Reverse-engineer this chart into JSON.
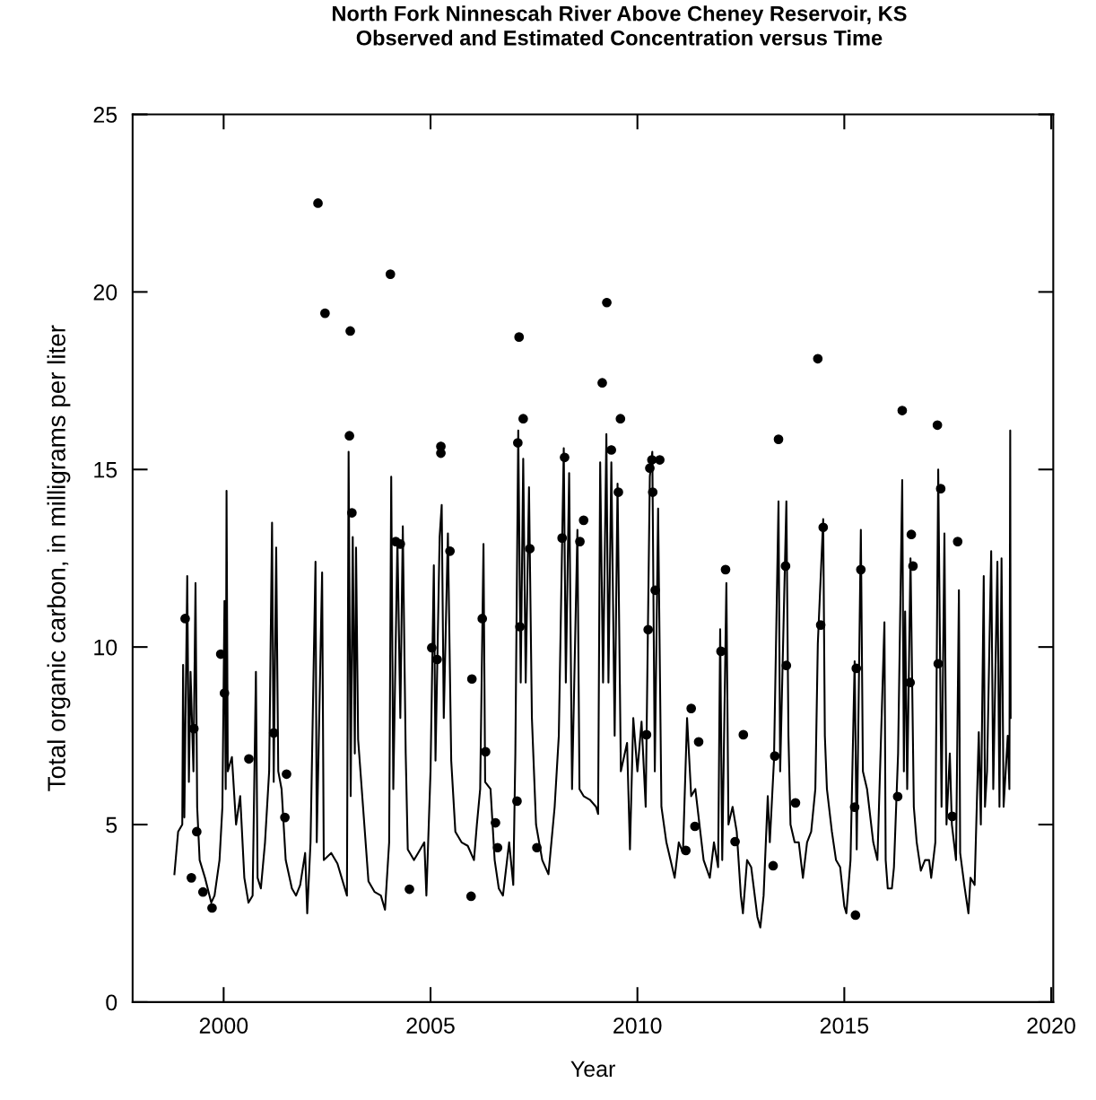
{
  "chart_data": {
    "type": "line",
    "title": "North Fork Ninnescah River Above Cheney Reservoir, KS\nObserved and Estimated Concentration versus Time",
    "xlabel": "Year",
    "ylabel": "Total organic carbon, in milligrams per liter",
    "xlim": [
      1997.8,
      2020.05
    ],
    "xticks": [
      2000,
      2005,
      2010,
      2015,
      2020
    ],
    "ylim": [
      0,
      25
    ],
    "yticks": [
      0,
      5,
      10,
      15,
      20,
      25
    ],
    "grid": false,
    "legend": false,
    "series": [
      {
        "color": "#000000",
        "marker": "none",
        "line_style": "solid",
        "x": [
          1998.81,
          1998.9,
          1999.0,
          1999.02,
          1999.05,
          1999.12,
          1999.16,
          1999.2,
          1999.27,
          1999.32,
          1999.36,
          1999.42,
          1999.55,
          1999.7,
          1999.78,
          1999.9,
          1999.97,
          2000.02,
          2000.05,
          2000.07,
          2000.1,
          2000.2,
          2000.3,
          2000.4,
          2000.5,
          2000.6,
          2000.7,
          2000.78,
          2000.82,
          2000.9,
          2001.0,
          2001.1,
          2001.17,
          2001.21,
          2001.27,
          2001.32,
          2001.4,
          2001.5,
          2001.65,
          2001.75,
          2001.85,
          2001.97,
          2002.02,
          2002.1,
          2002.22,
          2002.25,
          2002.38,
          2002.42,
          2002.6,
          2002.75,
          2002.98,
          2003.02,
          2003.07,
          2003.12,
          2003.17,
          2003.2,
          2003.25,
          2003.4,
          2003.5,
          2003.65,
          2003.8,
          2003.9,
          2004.0,
          2004.05,
          2004.1,
          2004.2,
          2004.27,
          2004.33,
          2004.4,
          2004.45,
          2004.6,
          2004.7,
          2004.85,
          2004.9,
          2005.0,
          2005.08,
          2005.12,
          2005.22,
          2005.27,
          2005.32,
          2005.42,
          2005.5,
          2005.6,
          2005.75,
          2005.9,
          2006.05,
          2006.12,
          2006.2,
          2006.28,
          2006.32,
          2006.45,
          2006.55,
          2006.65,
          2006.75,
          2006.9,
          2007.0,
          2007.05,
          2007.12,
          2007.18,
          2007.24,
          2007.3,
          2007.38,
          2007.45,
          2007.55,
          2007.7,
          2007.85,
          2008.0,
          2008.1,
          2008.22,
          2008.27,
          2008.35,
          2008.42,
          2008.55,
          2008.6,
          2008.7,
          2008.85,
          2009.0,
          2009.05,
          2009.1,
          2009.17,
          2009.25,
          2009.3,
          2009.37,
          2009.45,
          2009.52,
          2009.6,
          2009.75,
          2009.82,
          2009.9,
          2010.0,
          2010.1,
          2010.2,
          2010.3,
          2010.36,
          2010.42,
          2010.5,
          2010.58,
          2010.7,
          2010.8,
          2010.9,
          2011.0,
          2011.1,
          2011.2,
          2011.3,
          2011.4,
          2011.5,
          2011.6,
          2011.75,
          2011.85,
          2011.95,
          2012.0,
          2012.05,
          2012.15,
          2012.2,
          2012.3,
          2012.4,
          2012.5,
          2012.55,
          2012.65,
          2012.75,
          2012.9,
          2012.97,
          2013.05,
          2013.15,
          2013.2,
          2013.3,
          2013.41,
          2013.45,
          2013.6,
          2013.65,
          2013.7,
          2013.8,
          2013.9,
          2014.0,
          2014.1,
          2014.2,
          2014.3,
          2014.36,
          2014.49,
          2014.53,
          2014.58,
          2014.7,
          2014.8,
          2014.9,
          2015.0,
          2015.05,
          2015.15,
          2015.25,
          2015.3,
          2015.4,
          2015.45,
          2015.55,
          2015.7,
          2015.8,
          2015.97,
          2016.0,
          2016.05,
          2016.15,
          2016.2,
          2016.3,
          2016.4,
          2016.44,
          2016.47,
          2016.52,
          2016.6,
          2016.68,
          2016.75,
          2016.85,
          2016.95,
          2017.05,
          2017.1,
          2017.2,
          2017.27,
          2017.35,
          2017.42,
          2017.47,
          2017.55,
          2017.6,
          2017.7,
          2017.77,
          2017.8,
          2017.9,
          2018.0,
          2018.05,
          2018.15,
          2018.25,
          2018.3,
          2018.37,
          2018.4,
          2018.45,
          2018.55,
          2018.6,
          2018.7,
          2018.75,
          2018.8,
          2018.85,
          2018.95,
          2018.99,
          2019.01,
          2019.02
        ],
        "values": [
          3.6,
          4.8,
          5.0,
          9.5,
          5.2,
          12.0,
          6.2,
          9.3,
          6.5,
          11.8,
          5.5,
          4.0,
          3.5,
          2.8,
          3.0,
          4.0,
          5.5,
          11.3,
          6.0,
          14.4,
          6.5,
          6.9,
          5.0,
          5.8,
          3.5,
          2.8,
          3.0,
          9.3,
          3.5,
          3.2,
          4.5,
          6.5,
          13.5,
          6.2,
          12.8,
          6.5,
          6.0,
          4.0,
          3.2,
          3.0,
          3.3,
          4.2,
          2.5,
          4.5,
          12.4,
          4.5,
          12.1,
          4.0,
          4.2,
          3.9,
          3.0,
          15.5,
          5.8,
          13.1,
          7.0,
          12.8,
          7.4,
          5.0,
          3.4,
          3.1,
          3.0,
          2.6,
          4.5,
          14.8,
          6.0,
          13.0,
          8.0,
          13.4,
          7.0,
          4.3,
          4.0,
          4.2,
          4.5,
          3.0,
          6.5,
          12.3,
          6.8,
          13.1,
          14.0,
          8.0,
          13.2,
          6.8,
          4.8,
          4.5,
          4.4,
          4.0,
          5.0,
          6.0,
          12.9,
          6.2,
          6.0,
          4.0,
          3.2,
          3.0,
          4.5,
          3.3,
          7.0,
          16.1,
          9.0,
          15.3,
          9.0,
          14.5,
          8.0,
          5.0,
          4.0,
          3.6,
          5.5,
          7.5,
          15.6,
          9.0,
          14.9,
          6.0,
          13.3,
          6.0,
          5.8,
          5.7,
          5.5,
          5.3,
          15.2,
          9.0,
          16.0,
          9.0,
          15.2,
          7.5,
          14.6,
          6.5,
          7.3,
          4.3,
          8.0,
          6.5,
          7.9,
          5.5,
          14.8,
          15.5,
          6.5,
          13.9,
          5.5,
          4.5,
          4.0,
          3.5,
          4.5,
          4.2,
          8.0,
          5.8,
          6.0,
          5.0,
          4.0,
          3.5,
          4.5,
          3.8,
          10.5,
          4.0,
          11.8,
          5.0,
          5.5,
          4.8,
          3.0,
          2.5,
          4.0,
          3.8,
          2.4,
          2.1,
          3.0,
          5.8,
          4.5,
          6.8,
          14.1,
          6.5,
          14.1,
          7.5,
          5.0,
          4.5,
          4.5,
          3.5,
          4.5,
          4.8,
          6.0,
          10.1,
          13.6,
          7.5,
          6.0,
          4.8,
          4.0,
          3.8,
          2.7,
          2.5,
          4.0,
          9.6,
          4.3,
          13.3,
          6.5,
          6.0,
          4.5,
          4.0,
          10.7,
          4.0,
          3.2,
          3.2,
          3.8,
          7.0,
          14.7,
          6.5,
          11.0,
          6.0,
          12.5,
          5.5,
          4.5,
          3.7,
          4.0,
          4.0,
          3.5,
          4.5,
          15.0,
          5.5,
          13.2,
          5.0,
          7.0,
          5.0,
          4.0,
          11.6,
          4.2,
          3.3,
          2.5,
          3.5,
          3.3,
          7.6,
          5.0,
          12.0,
          5.5,
          6.5,
          12.7,
          6.0,
          12.4,
          5.5,
          12.5,
          5.5,
          7.5,
          6.0,
          16.1,
          8.0
        ]
      },
      {
        "type": "scatter",
        "color": "#000000",
        "marker": "circle",
        "x": [
          1999.07,
          1999.22,
          1999.28,
          1999.35,
          1999.5,
          1999.72,
          1999.93,
          2000.02,
          2000.61,
          2001.21,
          2001.48,
          2001.52,
          2002.28,
          2002.45,
          2003.04,
          2003.06,
          2003.1,
          2004.03,
          2004.16,
          2004.27,
          2004.49,
          2005.03,
          2005.16,
          2005.25,
          2005.25,
          2005.47,
          2005.98,
          2006.0,
          2006.25,
          2006.33,
          2006.57,
          2006.62,
          2007.09,
          2007.11,
          2007.14,
          2007.16,
          2007.24,
          2007.4,
          2007.57,
          2008.18,
          2008.24,
          2008.61,
          2008.7,
          2009.15,
          2009.26,
          2009.37,
          2009.54,
          2009.59,
          2010.22,
          2010.26,
          2010.3,
          2010.35,
          2010.37,
          2010.43,
          2010.54,
          2011.17,
          2011.3,
          2011.39,
          2011.48,
          2012.02,
          2012.13,
          2012.36,
          2012.56,
          2013.28,
          2013.32,
          2013.41,
          2013.58,
          2013.6,
          2013.82,
          2014.36,
          2014.43,
          2014.49,
          2015.25,
          2015.27,
          2015.29,
          2015.4,
          2016.29,
          2016.4,
          2016.59,
          2016.62,
          2016.66,
          2017.25,
          2017.27,
          2017.33,
          2017.61,
          2017.74
        ],
        "values": [
          10.8,
          3.5,
          7.7,
          4.8,
          3.1,
          2.65,
          9.8,
          8.7,
          6.85,
          7.58,
          5.2,
          6.42,
          22.5,
          19.4,
          15.95,
          18.9,
          13.78,
          20.5,
          12.97,
          12.9,
          3.18,
          9.98,
          9.65,
          15.65,
          15.46,
          12.7,
          2.98,
          9.1,
          10.8,
          7.05,
          5.05,
          4.35,
          5.66,
          15.75,
          18.73,
          10.57,
          16.43,
          12.77,
          4.35,
          13.07,
          15.34,
          12.97,
          13.57,
          17.44,
          19.7,
          15.55,
          14.36,
          16.43,
          7.53,
          10.49,
          15.04,
          15.27,
          14.36,
          11.6,
          15.27,
          4.27,
          8.27,
          4.95,
          7.33,
          9.88,
          12.18,
          4.52,
          7.53,
          3.84,
          6.93,
          15.85,
          12.28,
          9.48,
          5.61,
          18.12,
          10.62,
          13.37,
          5.49,
          2.45,
          9.4,
          12.18,
          5.79,
          16.66,
          9.0,
          13.17,
          12.28,
          16.25,
          9.53,
          14.46,
          5.23,
          12.97
        ]
      }
    ]
  }
}
